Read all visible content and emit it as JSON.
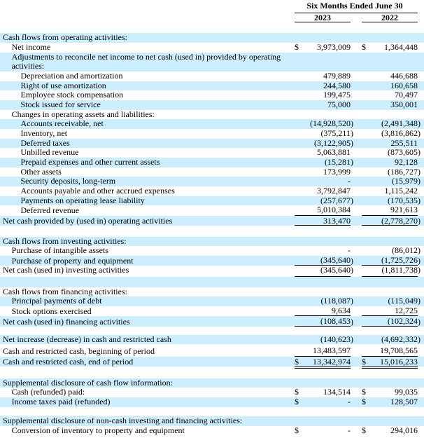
{
  "colors": {
    "stripe": "#cceeff",
    "background": "#ffffff",
    "text": "#000000",
    "rule": "#000000"
  },
  "header": {
    "period_label": "Six Months Ended June 30",
    "columns": [
      "2023",
      "2022"
    ]
  },
  "rows": [
    {
      "label": "Cash flows from operating activities:",
      "indent": 0,
      "shaded": true,
      "dollar": false,
      "values": [
        "",
        ""
      ],
      "rule": "none"
    },
    {
      "label": "Net income",
      "indent": 1,
      "shaded": false,
      "dollar": true,
      "values": [
        "3,973,009",
        "1,364,448"
      ],
      "rule": "none"
    },
    {
      "label": "Adjustments to reconcile net income to net cash (used in) provided by operating activities:",
      "indent": 1,
      "shaded": true,
      "dollar": false,
      "values": [
        "",
        ""
      ],
      "rule": "none"
    },
    {
      "label": "Depreciation and amortization",
      "indent": 2,
      "shaded": false,
      "dollar": false,
      "values": [
        "479,889",
        "446,688"
      ],
      "rule": "none"
    },
    {
      "label": "Right of use amortization",
      "indent": 2,
      "shaded": true,
      "dollar": false,
      "values": [
        "244,580",
        "160,658"
      ],
      "rule": "none"
    },
    {
      "label": "Employee stock compensation",
      "indent": 2,
      "shaded": false,
      "dollar": false,
      "values": [
        "199,475",
        "70,497"
      ],
      "rule": "none"
    },
    {
      "label": "Stock issued for service",
      "indent": 2,
      "shaded": true,
      "dollar": false,
      "values": [
        "75,000",
        "350,001"
      ],
      "rule": "none"
    },
    {
      "label": "Changes in operating assets and liabilities:",
      "indent": 1,
      "shaded": false,
      "dollar": false,
      "values": [
        "",
        ""
      ],
      "rule": "none"
    },
    {
      "label": "Accounts receivable, net",
      "indent": 2,
      "shaded": true,
      "dollar": false,
      "values": [
        "(14,928,520)",
        "(2,491,348)"
      ],
      "rule": "none"
    },
    {
      "label": "Inventory, net",
      "indent": 2,
      "shaded": false,
      "dollar": false,
      "values": [
        "(375,211)",
        "(3,816,862)"
      ],
      "rule": "none"
    },
    {
      "label": "Deferred taxes",
      "indent": 2,
      "shaded": true,
      "dollar": false,
      "values": [
        "(3,122,905)",
        "255,511"
      ],
      "rule": "none"
    },
    {
      "label": "Unbilled revenue",
      "indent": 2,
      "shaded": false,
      "dollar": false,
      "values": [
        "5,063,881",
        "(873,605)"
      ],
      "rule": "none"
    },
    {
      "label": "Prepaid expenses and other current assets",
      "indent": 2,
      "shaded": true,
      "dollar": false,
      "values": [
        "(15,281)",
        "92,128"
      ],
      "rule": "none"
    },
    {
      "label": "Other assets",
      "indent": 2,
      "shaded": false,
      "dollar": false,
      "values": [
        "173,999",
        "(186,727)"
      ],
      "rule": "none"
    },
    {
      "label": "Security deposits, long-term",
      "indent": 2,
      "shaded": true,
      "dollar": false,
      "values": [
        "-",
        "(15,979)"
      ],
      "rule": "none"
    },
    {
      "label": "Accounts payable and other accrued expenses",
      "indent": 2,
      "shaded": false,
      "dollar": false,
      "values": [
        "3,792,847",
        "1,115,242"
      ],
      "rule": "none"
    },
    {
      "label": "Payments on operating lease liability",
      "indent": 2,
      "shaded": true,
      "dollar": false,
      "values": [
        "(257,677)",
        "(170,535)"
      ],
      "rule": "none"
    },
    {
      "label": "Deferred revenue",
      "indent": 2,
      "shaded": false,
      "dollar": false,
      "values": [
        "5,010,384",
        "921,613"
      ],
      "rule": "single"
    },
    {
      "label": "Net cash provided by (used in) operating activities",
      "indent": 0,
      "shaded": true,
      "dollar": false,
      "values": [
        "313,470",
        "(2,778,270)"
      ],
      "rule": "single"
    },
    {
      "label": "",
      "blank": true,
      "shaded": false
    },
    {
      "label": "Cash flows from investing activities:",
      "indent": 0,
      "shaded": true,
      "dollar": false,
      "values": [
        "",
        ""
      ],
      "rule": "none"
    },
    {
      "label": "Purchase of intangible assets",
      "indent": 1,
      "shaded": false,
      "dollar": false,
      "values": [
        "-",
        "(86,012)"
      ],
      "rule": "none"
    },
    {
      "label": "Purchase of property and equipment",
      "indent": 1,
      "shaded": true,
      "dollar": false,
      "values": [
        "(345,640)",
        "(1,725,726)"
      ],
      "rule": "single"
    },
    {
      "label": "Net cash (used in) investing activities",
      "indent": 0,
      "shaded": false,
      "dollar": false,
      "values": [
        "(345,640)",
        "(1,811,738)"
      ],
      "rule": "single"
    },
    {
      "label": "",
      "blank": true,
      "shaded": true
    },
    {
      "label": "Cash flows from financing activities:",
      "indent": 0,
      "shaded": false,
      "dollar": false,
      "values": [
        "",
        ""
      ],
      "rule": "none"
    },
    {
      "label": "Principal payments of debt",
      "indent": 1,
      "shaded": true,
      "dollar": false,
      "values": [
        "(118,087)",
        "(115,049)"
      ],
      "rule": "none"
    },
    {
      "label": "Stock options exercised",
      "indent": 1,
      "shaded": false,
      "dollar": false,
      "values": [
        "9,634",
        "12,725"
      ],
      "rule": "single"
    },
    {
      "label": "Net cash (used in) financing activities",
      "indent": 0,
      "shaded": true,
      "dollar": false,
      "values": [
        "(108,453)",
        "(102,324)"
      ],
      "rule": "single"
    },
    {
      "label": "",
      "blank": true,
      "shaded": false
    },
    {
      "label": "Net increase (decrease) in cash and restricted cash",
      "indent": 0,
      "shaded": true,
      "dollar": false,
      "values": [
        "(140,623)",
        "(4,692,332)"
      ],
      "rule": "none"
    },
    {
      "label": "Cash and restricted cash, beginning of period",
      "indent": 0,
      "shaded": false,
      "dollar": false,
      "values": [
        "13,483,597",
        "19,708,565"
      ],
      "rule": "single"
    },
    {
      "label": "Cash and restricted cash, end of period",
      "indent": 0,
      "shaded": true,
      "dollar": true,
      "values": [
        "13,342,974",
        "15,016,233"
      ],
      "rule": "double"
    },
    {
      "label": "",
      "blank": true,
      "shaded": false
    },
    {
      "label": "Supplemental disclosure of cash flow information:",
      "indent": 0,
      "shaded": true,
      "dollar": false,
      "values": [
        "",
        ""
      ],
      "rule": "none"
    },
    {
      "label": "Cash (refunded) paid:",
      "indent": 1,
      "shaded": false,
      "dollar": true,
      "values": [
        "134,514",
        "99,035"
      ],
      "rule": "none"
    },
    {
      "label": "Income taxes paid (refunded)",
      "indent": 1,
      "shaded": true,
      "dollar": true,
      "values": [
        "-",
        "128,507"
      ],
      "rule": "none"
    },
    {
      "label": "",
      "blank": true,
      "shaded": false
    },
    {
      "label": "Supplemental disclosure of non-cash investing and financing activities:",
      "indent": 0,
      "shaded": true,
      "dollar": false,
      "values": [
        "",
        ""
      ],
      "rule": "none"
    },
    {
      "label": "Conversion of inventory to property and equipment",
      "indent": 1,
      "shaded": false,
      "dollar": true,
      "values": [
        "-",
        "294,016"
      ],
      "rule": "none"
    }
  ]
}
